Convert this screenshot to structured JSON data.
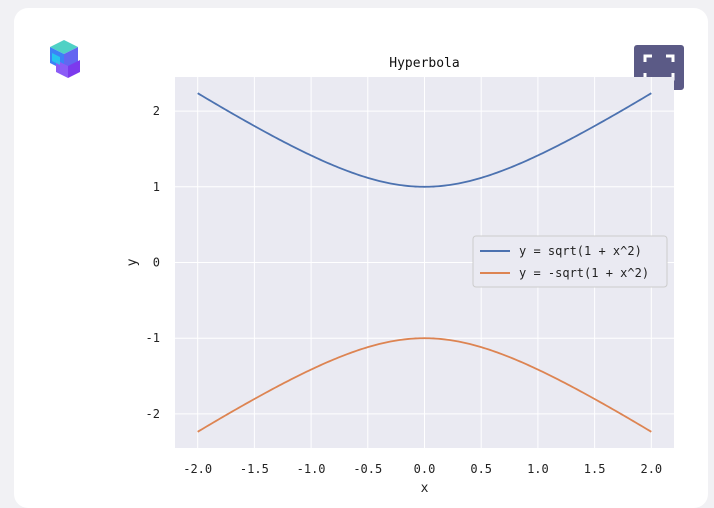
{
  "toolbar": {
    "fullscreen_icon": "expand-icon",
    "logo_icon": "cube-logo-icon"
  },
  "chart_data": {
    "type": "line",
    "title": "Hyperbola",
    "xlabel": "x",
    "ylabel": "y",
    "xlim": [
      -2.0,
      2.0
    ],
    "ylim": [
      -2.45,
      2.45
    ],
    "xticks": [
      -2.0,
      -1.5,
      -1.0,
      -0.5,
      0.0,
      0.5,
      1.0,
      1.5,
      2.0
    ],
    "xtick_labels": [
      "-2.0",
      "-1.5",
      "-1.0",
      "-0.5",
      "0.0",
      "0.5",
      "1.0",
      "1.5",
      "2.0"
    ],
    "yticks": [
      -2,
      -1,
      0,
      1,
      2
    ],
    "ytick_labels": [
      "-2",
      "-1",
      "0",
      "1",
      "2"
    ],
    "grid": true,
    "legend_position": "center-right",
    "x": [
      -2.0,
      -1.75,
      -1.5,
      -1.25,
      -1.0,
      -0.75,
      -0.5,
      -0.25,
      0.0,
      0.25,
      0.5,
      0.75,
      1.0,
      1.25,
      1.5,
      1.75,
      2.0
    ],
    "series": [
      {
        "name": "y = sqrt(1 + x^2)",
        "color": "#4c72b0",
        "values": [
          2.236,
          2.016,
          1.803,
          1.601,
          1.414,
          1.25,
          1.118,
          1.031,
          1.0,
          1.031,
          1.118,
          1.25,
          1.414,
          1.601,
          1.803,
          2.016,
          2.236
        ]
      },
      {
        "name": "y = -sqrt(1 + x^2)",
        "color": "#dd8452",
        "values": [
          -2.236,
          -2.016,
          -1.803,
          -1.601,
          -1.414,
          -1.25,
          -1.118,
          -1.031,
          -1.0,
          -1.031,
          -1.118,
          -1.25,
          -1.414,
          -1.601,
          -1.803,
          -2.016,
          -2.236
        ]
      }
    ]
  }
}
